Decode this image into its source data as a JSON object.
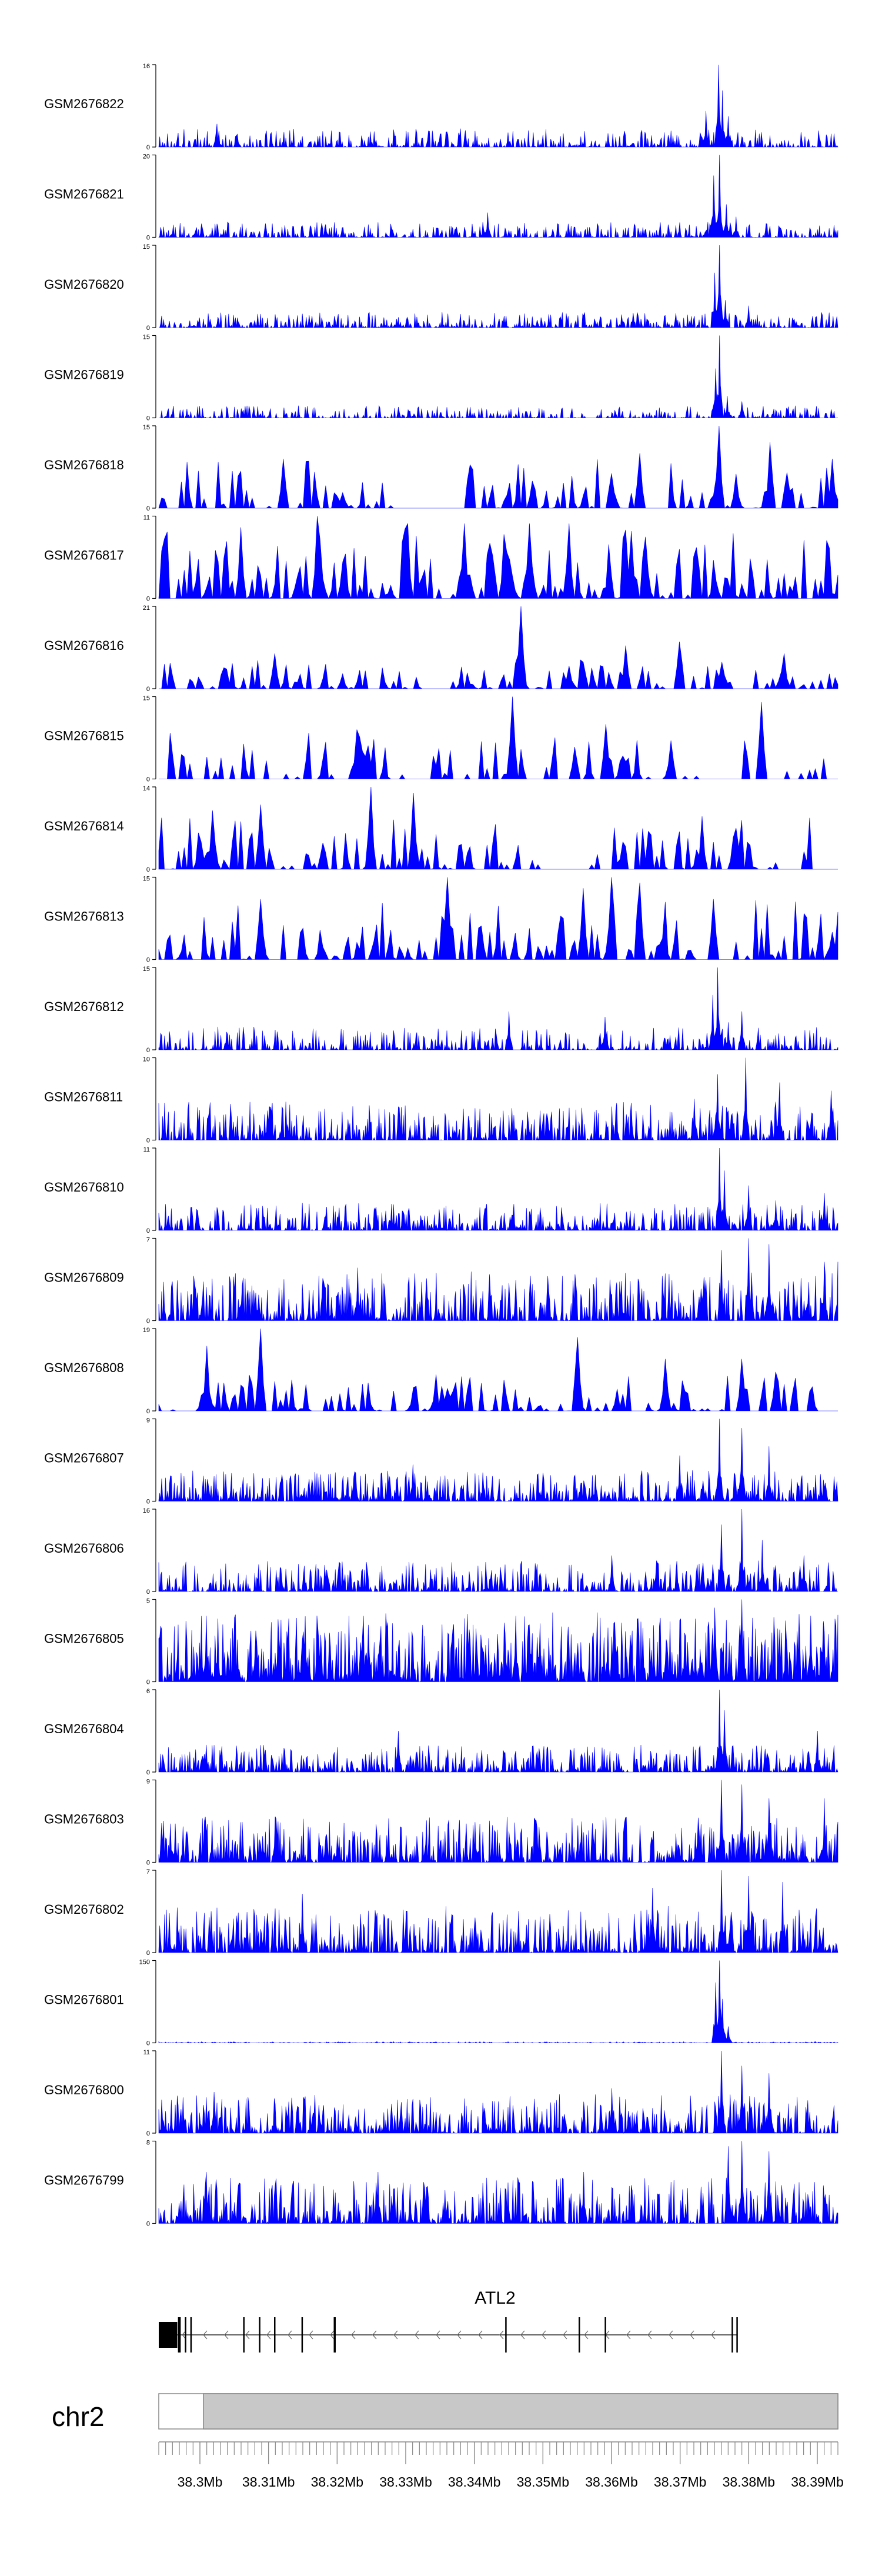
{
  "chart_data": {
    "type": "area",
    "region": {
      "chrom": "chr2",
      "start_mb": 38.294,
      "end_mb": 38.393
    },
    "fill_color": "#0000ff",
    "x_ticks": [
      38.3,
      38.31,
      38.32,
      38.33,
      38.34,
      38.35,
      38.36,
      38.37,
      38.38,
      38.39
    ],
    "x_tick_labels": [
      "38.3Mb",
      "38.31Mb",
      "38.32Mb",
      "38.33Mb",
      "38.34Mb",
      "38.35Mb",
      "38.36Mb",
      "38.37Mb",
      "38.38Mb",
      "38.39Mb"
    ],
    "tracks": [
      {
        "name": "GSM2676822",
        "ymax": 16,
        "ymax_label": "16",
        "style": "dense",
        "noise": 0.12,
        "coverage": 0.55,
        "gaps": [],
        "peaks": [
          [
            38.3756,
            16
          ],
          [
            38.3761,
            11
          ],
          [
            38.377,
            6
          ],
          [
            38.3737,
            7
          ],
          [
            38.3025,
            4.5
          ],
          [
            38.3055,
            2.5
          ]
        ]
      },
      {
        "name": "GSM2676821",
        "ymax": 20,
        "ymax_label": "20",
        "style": "dense",
        "noise": 0.1,
        "coverage": 0.6,
        "gaps": [],
        "peaks": [
          [
            38.3757,
            20
          ],
          [
            38.3749,
            15
          ],
          [
            38.3768,
            8
          ],
          [
            38.342,
            6
          ],
          [
            38.3781,
            5
          ]
        ]
      },
      {
        "name": "GSM2676820",
        "ymax": 15,
        "ymax_label": "15",
        "style": "dense",
        "noise": 0.1,
        "coverage": 0.65,
        "gaps": [],
        "peaks": [
          [
            38.3757,
            15
          ],
          [
            38.3751,
            10
          ],
          [
            38.3766,
            5
          ],
          [
            38.38,
            4
          ]
        ]
      },
      {
        "name": "GSM2676819",
        "ymax": 15,
        "ymax_label": "15",
        "style": "dense",
        "noise": 0.08,
        "coverage": 0.55,
        "gaps": [],
        "peaks": [
          [
            38.3757,
            15
          ],
          [
            38.3752,
            9
          ],
          [
            38.3769,
            4
          ],
          [
            38.379,
            3
          ]
        ]
      },
      {
        "name": "GSM2676818",
        "ymax": 15,
        "ymax_label": "15",
        "style": "sparse",
        "noise": 0.32,
        "coverage": 0.45,
        "gaps": [
          [
            38.328,
            38.337
          ],
          [
            38.364,
            38.368
          ]
        ],
        "peaks": [
          [
            38.3755,
            15
          ],
          [
            38.383,
            12
          ],
          [
            38.364,
            10
          ],
          [
            38.312,
            9
          ],
          [
            38.392,
            9
          ]
        ]
      },
      {
        "name": "GSM2676817",
        "ymax": 11,
        "ymax_label": "11",
        "style": "sparse",
        "noise": 0.45,
        "coverage": 0.6,
        "gaps": [],
        "peaks": [
          [
            38.3173,
            11
          ],
          [
            38.3305,
            10
          ],
          [
            38.3385,
            10
          ],
          [
            38.348,
            10
          ],
          [
            38.354,
            10
          ],
          [
            38.306,
            9.5
          ],
          [
            38.363,
            9
          ]
        ]
      },
      {
        "name": "GSM2676816",
        "ymax": 21,
        "ymax_label": "21",
        "style": "sparse",
        "noise": 0.2,
        "coverage": 0.55,
        "gaps": [
          [
            38.332,
            38.336
          ]
        ],
        "peaks": [
          [
            38.347,
            21
          ],
          [
            38.37,
            12
          ],
          [
            38.362,
            11
          ],
          [
            38.311,
            9
          ],
          [
            38.385,
            9
          ]
        ]
      },
      {
        "name": "GSM2676815",
        "ymax": 15,
        "ymax_label": "15",
        "style": "sparse",
        "noise": 0.3,
        "coverage": 0.35,
        "gaps": [
          [
            38.373,
            38.379
          ],
          [
            38.391,
            38.393
          ]
        ],
        "peaks": [
          [
            38.3455,
            15
          ],
          [
            38.382,
            14
          ],
          [
            38.359,
            10
          ],
          [
            38.3228,
            9
          ],
          [
            38.3688,
            7
          ]
        ]
      },
      {
        "name": "GSM2676814",
        "ymax": 14,
        "ymax_label": "14",
        "style": "sparse",
        "noise": 0.35,
        "coverage": 0.45,
        "gaps": [
          [
            38.35,
            38.357
          ],
          [
            38.389,
            38.393
          ]
        ],
        "peaks": [
          [
            38.325,
            14
          ],
          [
            38.331,
            13
          ],
          [
            38.309,
            11
          ],
          [
            38.302,
            10
          ],
          [
            38.373,
            9
          ]
        ]
      },
      {
        "name": "GSM2676813",
        "ymax": 15,
        "ymax_label": "15",
        "style": "sparse",
        "noise": 0.38,
        "coverage": 0.45,
        "gaps": [
          [
            38.372,
            38.375
          ]
        ],
        "peaks": [
          [
            38.336,
            15
          ],
          [
            38.36,
            15
          ],
          [
            38.364,
            14
          ],
          [
            38.356,
            13
          ],
          [
            38.309,
            11
          ],
          [
            38.375,
            11
          ]
        ]
      },
      {
        "name": "GSM2676812",
        "ymax": 15,
        "ymax_label": "15",
        "style": "dense",
        "noise": 0.15,
        "coverage": 0.5,
        "gaps": [],
        "peaks": [
          [
            38.3755,
            15
          ],
          [
            38.3748,
            10
          ],
          [
            38.379,
            7
          ],
          [
            38.345,
            7
          ],
          [
            38.359,
            6
          ],
          [
            38.377,
            5
          ]
        ]
      },
      {
        "name": "GSM2676811",
        "ymax": 10,
        "ymax_label": "10",
        "style": "dense",
        "noise": 0.25,
        "coverage": 0.65,
        "gaps": [],
        "peaks": [
          [
            38.3795,
            10
          ],
          [
            38.3755,
            8
          ],
          [
            38.3845,
            7
          ],
          [
            38.392,
            6
          ],
          [
            38.372,
            5
          ]
        ]
      },
      {
        "name": "GSM2676810",
        "ymax": 11,
        "ymax_label": "11",
        "style": "dense",
        "noise": 0.18,
        "coverage": 0.7,
        "gaps": [],
        "peaks": [
          [
            38.3757,
            11
          ],
          [
            38.3765,
            8
          ],
          [
            38.38,
            6
          ],
          [
            38.391,
            5
          ],
          [
            38.384,
            4
          ]
        ]
      },
      {
        "name": "GSM2676809",
        "ymax": 7,
        "ymax_label": "7",
        "style": "dense",
        "noise": 0.32,
        "coverage": 0.7,
        "gaps": [],
        "peaks": [
          [
            38.38,
            7
          ],
          [
            38.383,
            6.5
          ],
          [
            38.376,
            6
          ],
          [
            38.393,
            5
          ],
          [
            38.323,
            4.5
          ],
          [
            38.391,
            5
          ]
        ]
      },
      {
        "name": "GSM2676808",
        "ymax": 19,
        "ymax_label": "19",
        "style": "sparse",
        "noise": 0.25,
        "coverage": 0.5,
        "gaps": [
          [
            38.316,
            38.318
          ],
          [
            38.39,
            38.393
          ]
        ],
        "peaks": [
          [
            38.309,
            19
          ],
          [
            38.355,
            17
          ],
          [
            38.368,
            12
          ],
          [
            38.301,
            15
          ],
          [
            38.379,
            12
          ],
          [
            38.384,
            9
          ]
        ]
      },
      {
        "name": "GSM2676807",
        "ymax": 9,
        "ymax_label": "9",
        "style": "dense",
        "noise": 0.2,
        "coverage": 0.75,
        "gaps": [],
        "peaks": [
          [
            38.3757,
            9
          ],
          [
            38.379,
            8
          ],
          [
            38.383,
            6
          ],
          [
            38.37,
            5
          ],
          [
            38.331,
            4
          ]
        ]
      },
      {
        "name": "GSM2676806",
        "ymax": 16,
        "ymax_label": "16",
        "style": "dense",
        "noise": 0.2,
        "coverage": 0.7,
        "gaps": [],
        "peaks": [
          [
            38.379,
            16
          ],
          [
            38.376,
            13
          ],
          [
            38.382,
            10
          ],
          [
            38.388,
            7
          ],
          [
            38.36,
            7
          ]
        ]
      },
      {
        "name": "GSM2676805",
        "ymax": 5,
        "ymax_label": "5",
        "style": "dense",
        "noise": 0.45,
        "coverage": 0.9,
        "gaps": [],
        "peaks": [
          [
            38.379,
            5
          ],
          [
            38.375,
            4.5
          ],
          [
            38.301,
            4
          ],
          [
            38.346,
            4
          ],
          [
            38.389,
            4
          ]
        ]
      },
      {
        "name": "GSM2676804",
        "ymax": 6,
        "ymax_label": "6",
        "style": "dense",
        "noise": 0.18,
        "coverage": 0.7,
        "gaps": [],
        "peaks": [
          [
            38.3757,
            6
          ],
          [
            38.3765,
            4.5
          ],
          [
            38.39,
            3
          ],
          [
            38.329,
            3
          ]
        ]
      },
      {
        "name": "GSM2676803",
        "ymax": 9,
        "ymax_label": "9",
        "style": "dense",
        "noise": 0.3,
        "coverage": 0.75,
        "gaps": [],
        "peaks": [
          [
            38.376,
            9
          ],
          [
            38.379,
            8.5
          ],
          [
            38.383,
            7
          ],
          [
            38.391,
            7
          ],
          [
            38.311,
            5
          ]
        ]
      },
      {
        "name": "GSM2676802",
        "ymax": 7,
        "ymax_label": "7",
        "style": "dense",
        "noise": 0.3,
        "coverage": 0.75,
        "gaps": [],
        "peaks": [
          [
            38.376,
            7
          ],
          [
            38.38,
            6.5
          ],
          [
            38.385,
            6
          ],
          [
            38.366,
            5.5
          ],
          [
            38.315,
            5
          ]
        ]
      },
      {
        "name": "GSM2676801",
        "ymax": 150,
        "ymax_label": "150",
        "style": "dense",
        "noise": 0.008,
        "coverage": 0.6,
        "gaps": [],
        "peaks": [
          [
            38.3757,
            150
          ],
          [
            38.3752,
            110
          ],
          [
            38.3762,
            80
          ],
          [
            38.377,
            30
          ]
        ]
      },
      {
        "name": "GSM2676800",
        "ymax": 11,
        "ymax_label": "11",
        "style": "dense",
        "noise": 0.25,
        "coverage": 0.7,
        "gaps": [],
        "peaks": [
          [
            38.376,
            11
          ],
          [
            38.379,
            9
          ],
          [
            38.383,
            8
          ],
          [
            38.36,
            6
          ],
          [
            38.302,
            5.5
          ]
        ]
      },
      {
        "name": "GSM2676799",
        "ymax": 8,
        "ymax_label": "8",
        "style": "dense",
        "noise": 0.3,
        "coverage": 0.7,
        "gaps": [],
        "peaks": [
          [
            38.379,
            8
          ],
          [
            38.377,
            7.5
          ],
          [
            38.383,
            7
          ],
          [
            38.301,
            5
          ],
          [
            38.326,
            5
          ],
          [
            38.356,
            5
          ]
        ]
      }
    ],
    "gene": {
      "name": "ATL2",
      "strand": "-",
      "start_mb": 38.294,
      "end_mb": 38.3783,
      "exons": [
        [
          38.294,
          38.2967
        ],
        [
          38.2968,
          38.2972
        ],
        [
          38.2978,
          38.298
        ],
        [
          38.2986,
          38.2988
        ],
        [
          38.3063,
          38.3065
        ],
        [
          38.3086,
          38.3088
        ],
        [
          38.3108,
          38.311
        ],
        [
          38.3148,
          38.315
        ],
        [
          38.3195,
          38.3198
        ],
        [
          38.3445,
          38.3447
        ],
        [
          38.3552,
          38.3554
        ],
        [
          38.359,
          38.3592
        ],
        [
          38.3775,
          38.3777
        ],
        [
          38.3782,
          38.3784
        ]
      ]
    },
    "ideogram": {
      "chrom_label": "chr2",
      "grey_from_mb": 38.3005
    }
  }
}
